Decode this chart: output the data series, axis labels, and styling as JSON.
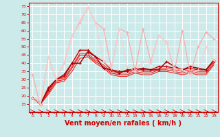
{
  "background_color": "#cceaea",
  "grid_color": "#ffffff",
  "xlabel": "Vent moyen/en rafales ( km/h )",
  "xlabel_color": "#cc0000",
  "xlabel_fontsize": 7,
  "xtick_color": "#cc0000",
  "ytick_color": "#cc0000",
  "xlim": [
    -0.5,
    23.5
  ],
  "ylim": [
    10,
    77
  ],
  "yticks": [
    15,
    20,
    25,
    30,
    35,
    40,
    45,
    50,
    55,
    60,
    65,
    70,
    75
  ],
  "xticks": [
    0,
    1,
    2,
    3,
    4,
    5,
    6,
    7,
    8,
    9,
    10,
    11,
    12,
    13,
    14,
    15,
    16,
    17,
    18,
    19,
    20,
    21,
    22,
    23
  ],
  "series": [
    {
      "x": [
        0,
        1,
        2,
        3,
        4,
        5,
        6,
        7,
        8,
        9,
        10,
        11,
        12,
        13,
        14,
        15,
        16,
        17,
        18,
        19,
        20,
        21,
        22,
        23
      ],
      "y": [
        19,
        15,
        25,
        30,
        32,
        40,
        48,
        48,
        44,
        41,
        36,
        35,
        35,
        37,
        36,
        36,
        38,
        38,
        37,
        36,
        37,
        36,
        36,
        41
      ],
      "color": "#cc0000",
      "linewidth": 1.0,
      "marker": "+",
      "markersize": 3
    },
    {
      "x": [
        0,
        1,
        2,
        3,
        4,
        5,
        6,
        7,
        8,
        9,
        10,
        11,
        12,
        13,
        14,
        15,
        16,
        17,
        18,
        19,
        20,
        21,
        22,
        23
      ],
      "y": [
        19,
        15,
        22,
        29,
        30,
        37,
        45,
        45,
        41,
        38,
        34,
        33,
        33,
        35,
        34,
        34,
        36,
        36,
        35,
        34,
        35,
        34,
        34,
        40
      ],
      "color": "#dd1111",
      "linewidth": 0.8,
      "marker": null,
      "markersize": 0
    },
    {
      "x": [
        0,
        1,
        2,
        3,
        4,
        5,
        6,
        7,
        8,
        9,
        10,
        11,
        12,
        13,
        14,
        15,
        16,
        17,
        18,
        19,
        20,
        21,
        22,
        23
      ],
      "y": [
        19,
        15,
        21,
        28,
        29,
        35,
        43,
        44,
        40,
        37,
        33,
        32,
        32,
        34,
        33,
        33,
        35,
        35,
        34,
        33,
        34,
        33,
        33,
        39
      ],
      "color": "#ee2222",
      "linewidth": 0.8,
      "marker": null,
      "markersize": 0
    },
    {
      "x": [
        0,
        1,
        2,
        3,
        4,
        5,
        6,
        7,
        8,
        9,
        10,
        11,
        12,
        13,
        14,
        15,
        16,
        17,
        18,
        19,
        20,
        21,
        22,
        23
      ],
      "y": [
        19,
        15,
        23,
        30,
        31,
        38,
        46,
        46,
        42,
        39,
        35,
        34,
        34,
        36,
        35,
        35,
        37,
        37,
        36,
        35,
        36,
        35,
        35,
        41
      ],
      "color": "#ff3333",
      "linewidth": 0.8,
      "marker": null,
      "markersize": 0
    },
    {
      "x": [
        0,
        1,
        2,
        3,
        4,
        5,
        6,
        7,
        8,
        9,
        10,
        11,
        12,
        13,
        14,
        15,
        16,
        17,
        18,
        19,
        20,
        21,
        22,
        23
      ],
      "y": [
        19,
        15,
        24,
        30,
        33,
        40,
        40,
        47,
        44,
        37,
        36,
        34,
        36,
        36,
        37,
        36,
        36,
        41,
        38,
        36,
        38,
        37,
        36,
        42
      ],
      "color": "#aa0000",
      "linewidth": 1.1,
      "marker": "+",
      "markersize": 3
    },
    {
      "x": [
        0,
        1,
        2,
        3,
        4,
        5,
        6,
        7,
        8,
        9,
        10,
        11,
        12,
        13,
        14,
        15,
        16,
        17,
        18,
        19,
        20,
        21,
        22,
        23
      ],
      "y": [
        33,
        14,
        44,
        30,
        40,
        57,
        65,
        74,
        65,
        61,
        37,
        61,
        59,
        35,
        61,
        41,
        57,
        53,
        35,
        60,
        33,
        50,
        59,
        55
      ],
      "color": "#ffaaaa",
      "linewidth": 0.9,
      "marker": "+",
      "markersize": 3
    },
    {
      "x": [
        0,
        1,
        2,
        3,
        4,
        5,
        6,
        7,
        8,
        9,
        10,
        11,
        12,
        13,
        14,
        15,
        16,
        17,
        18,
        19,
        20,
        21,
        22,
        23
      ],
      "y": [
        19,
        15,
        44,
        30,
        40,
        57,
        66,
        74,
        65,
        41,
        37,
        61,
        38,
        35,
        41,
        40,
        57,
        53,
        37,
        36,
        33,
        36,
        50,
        42
      ],
      "color": "#ffcccc",
      "linewidth": 0.8,
      "marker": "+",
      "markersize": 3
    }
  ]
}
